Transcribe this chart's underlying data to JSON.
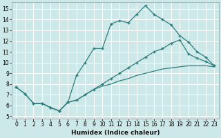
{
  "xlabel": "Humidex (Indice chaleur)",
  "bg_color": "#cce8e8",
  "line_color": "#2e7d7d",
  "grid_color": "#ffffff",
  "ylim": [
    4.8,
    15.6
  ],
  "xlim": [
    -0.5,
    23.5
  ],
  "yticks": [
    5,
    6,
    7,
    8,
    9,
    10,
    11,
    12,
    13,
    14,
    15
  ],
  "xticks": [
    0,
    1,
    2,
    3,
    4,
    5,
    6,
    7,
    8,
    9,
    10,
    11,
    12,
    13,
    14,
    15,
    16,
    17,
    18,
    19,
    20,
    21,
    22,
    23
  ],
  "curve1_x": [
    0,
    1,
    2,
    3,
    4,
    5,
    6,
    7,
    8,
    9,
    10,
    11,
    12,
    13,
    14,
    15,
    16,
    17,
    18,
    19,
    20,
    21,
    22,
    23
  ],
  "curve1_y": [
    7.7,
    7.1,
    6.2,
    6.2,
    5.8,
    5.5,
    6.3,
    8.8,
    10.0,
    11.3,
    11.3,
    13.6,
    13.9,
    13.7,
    14.5,
    15.3,
    14.5,
    14.0,
    13.5,
    12.5,
    11.9,
    11.0,
    10.5,
    9.7
  ],
  "curve2_x": [
    0,
    1,
    2,
    3,
    4,
    5,
    6,
    7,
    8,
    9,
    10,
    11,
    12,
    13,
    14,
    15,
    16,
    17,
    18,
    19,
    20,
    21,
    22,
    23
  ],
  "curve2_y": [
    7.7,
    7.1,
    6.2,
    6.2,
    5.8,
    5.5,
    6.3,
    6.5,
    7.0,
    7.5,
    8.0,
    8.5,
    9.0,
    9.5,
    10.0,
    10.5,
    11.0,
    11.3,
    11.8,
    12.1,
    10.8,
    10.4,
    10.1,
    9.7
  ],
  "curve3_x": [
    2,
    3,
    4,
    5,
    6,
    7,
    8,
    9,
    10,
    11,
    12,
    13,
    14,
    15,
    16,
    17,
    18,
    19,
    20,
    21,
    22,
    23
  ],
  "curve3_y": [
    6.2,
    6.2,
    5.8,
    5.5,
    6.3,
    6.5,
    7.0,
    7.5,
    7.8,
    8.0,
    8.3,
    8.5,
    8.8,
    9.0,
    9.2,
    9.4,
    9.5,
    9.6,
    9.7,
    9.7,
    9.7,
    9.6
  ]
}
